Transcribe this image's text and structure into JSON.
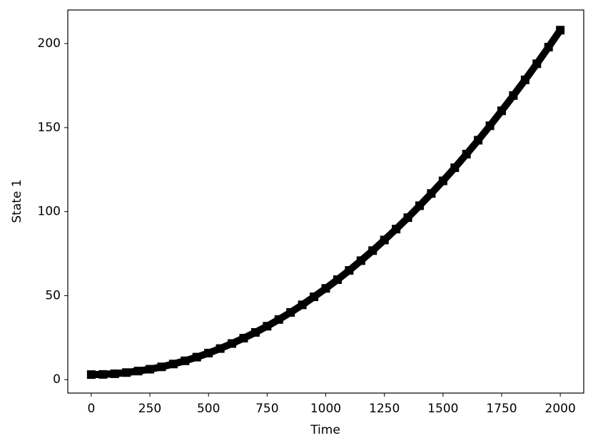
{
  "chart_data": {
    "type": "line",
    "xlabel": "Time",
    "ylabel": "State 1",
    "x": [
      0,
      50,
      100,
      150,
      200,
      250,
      300,
      350,
      400,
      450,
      500,
      550,
      600,
      650,
      700,
      750,
      800,
      850,
      900,
      950,
      1000,
      1050,
      1100,
      1150,
      1200,
      1250,
      1300,
      1350,
      1400,
      1450,
      1500,
      1550,
      1600,
      1650,
      1700,
      1750,
      1800,
      1850,
      1900,
      1950,
      2000
    ],
    "series": [
      {
        "color": "#000000",
        "values": [
          3,
          3.1,
          3.5,
          4.2,
          5.1,
          6.2,
          7.6,
          9.3,
          11.2,
          13.4,
          15.8,
          18.5,
          21.5,
          24.7,
          28.1,
          31.8,
          35.8,
          40.0,
          44.5,
          49.3,
          54.3,
          59.5,
          65.0,
          70.8,
          76.8,
          83.1,
          89.6,
          96.4,
          103.5,
          110.8,
          118.3,
          126.1,
          134.2,
          142.5,
          151.1,
          160.0,
          169.1,
          178.4,
          188.0,
          197.9,
          208.0
        ]
      }
    ],
    "xlim": [
      -100,
      2100
    ],
    "ylim": [
      -8,
      220
    ],
    "xticks": [
      0,
      250,
      500,
      750,
      1000,
      1250,
      1500,
      1750,
      2000
    ],
    "yticks": [
      0,
      50,
      100,
      150,
      200
    ],
    "grid": false
  }
}
